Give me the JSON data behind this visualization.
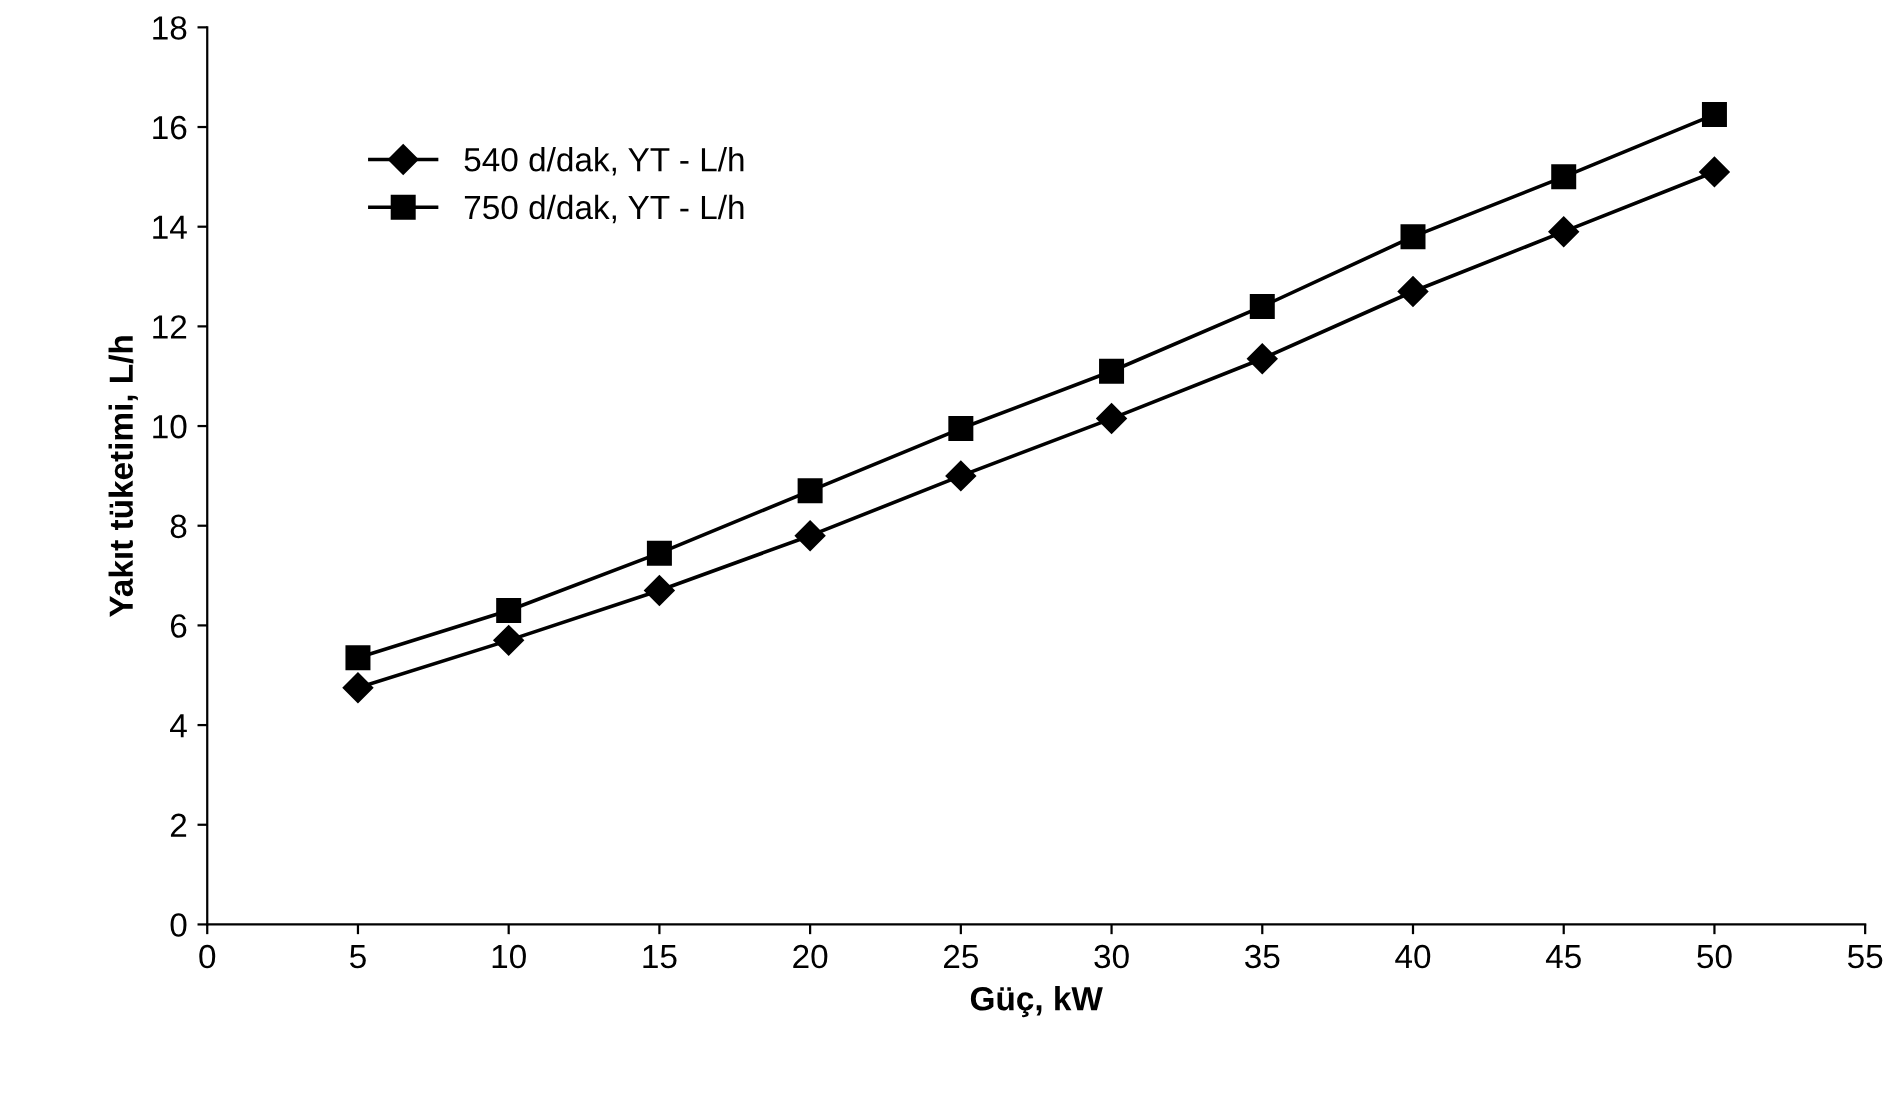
{
  "chart_data": {
    "type": "line",
    "xlabel": "Güç, kW",
    "ylabel": "Yakıt tüketimi, L/h",
    "x": [
      5,
      10,
      15,
      20,
      25,
      30,
      35,
      40,
      45,
      50
    ],
    "series": [
      {
        "name": "540 d/dak, YT - L/h",
        "color": "#000000",
        "marker": "diamond",
        "values": [
          4.75,
          5.7,
          6.7,
          7.8,
          9.0,
          10.15,
          11.35,
          12.7,
          13.9,
          15.1
        ]
      },
      {
        "name": "750 d/dak, YT - L/h",
        "color": "#000000",
        "marker": "square",
        "values": [
          5.35,
          6.3,
          7.45,
          8.7,
          9.95,
          11.1,
          12.4,
          13.8,
          15.0,
          16.25
        ]
      }
    ],
    "xlim": [
      0,
      55
    ],
    "xticks": [
      0,
      5,
      10,
      15,
      20,
      25,
      30,
      35,
      40,
      45,
      50,
      55
    ],
    "ylim": [
      0,
      18
    ],
    "yticks": [
      0,
      2,
      4,
      6,
      8,
      10,
      12,
      14,
      16,
      18
    ],
    "grid": false,
    "legend": "top left",
    "line_style": "solid"
  }
}
